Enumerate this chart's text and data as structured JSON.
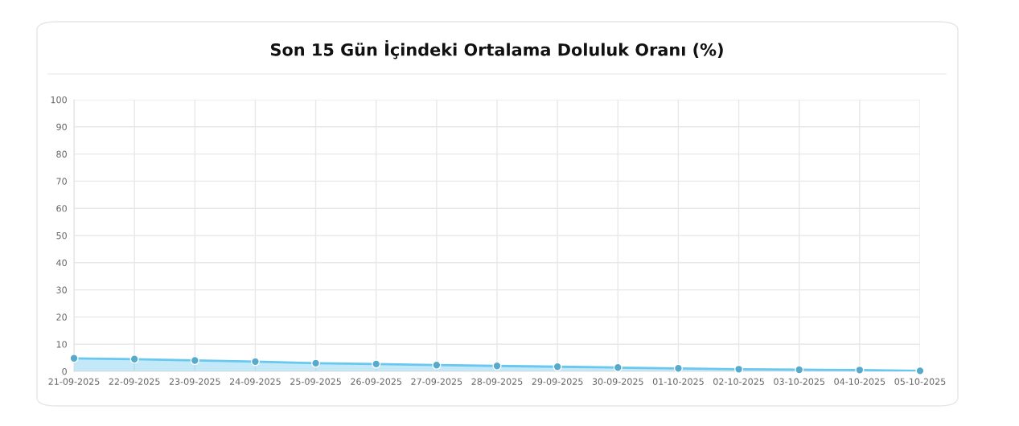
{
  "chart_data": {
    "type": "area",
    "title": "Son 15 Gün İçindeki Ortalama Doluluk Oranı (%)",
    "categories": [
      "21-09-2025",
      "22-09-2025",
      "23-09-2025",
      "24-09-2025",
      "25-09-2025",
      "26-09-2025",
      "27-09-2025",
      "28-09-2025",
      "29-09-2025",
      "30-09-2025",
      "01-10-2025",
      "02-10-2025",
      "03-10-2025",
      "04-10-2025",
      "05-10-2025"
    ],
    "series": [
      {
        "color": "#68c8f0",
        "values": [
          4.8,
          4.5,
          4.0,
          3.6,
          3.0,
          2.7,
          2.3,
          2.0,
          1.7,
          1.4,
          1.1,
          0.8,
          0.6,
          0.5,
          0.2
        ]
      }
    ],
    "ylim": [
      0,
      100
    ],
    "yticks": [
      0,
      10,
      20,
      30,
      40,
      50,
      60,
      70,
      80,
      90,
      100
    ],
    "grid": true,
    "marker": "circle",
    "line_style": "solid"
  }
}
